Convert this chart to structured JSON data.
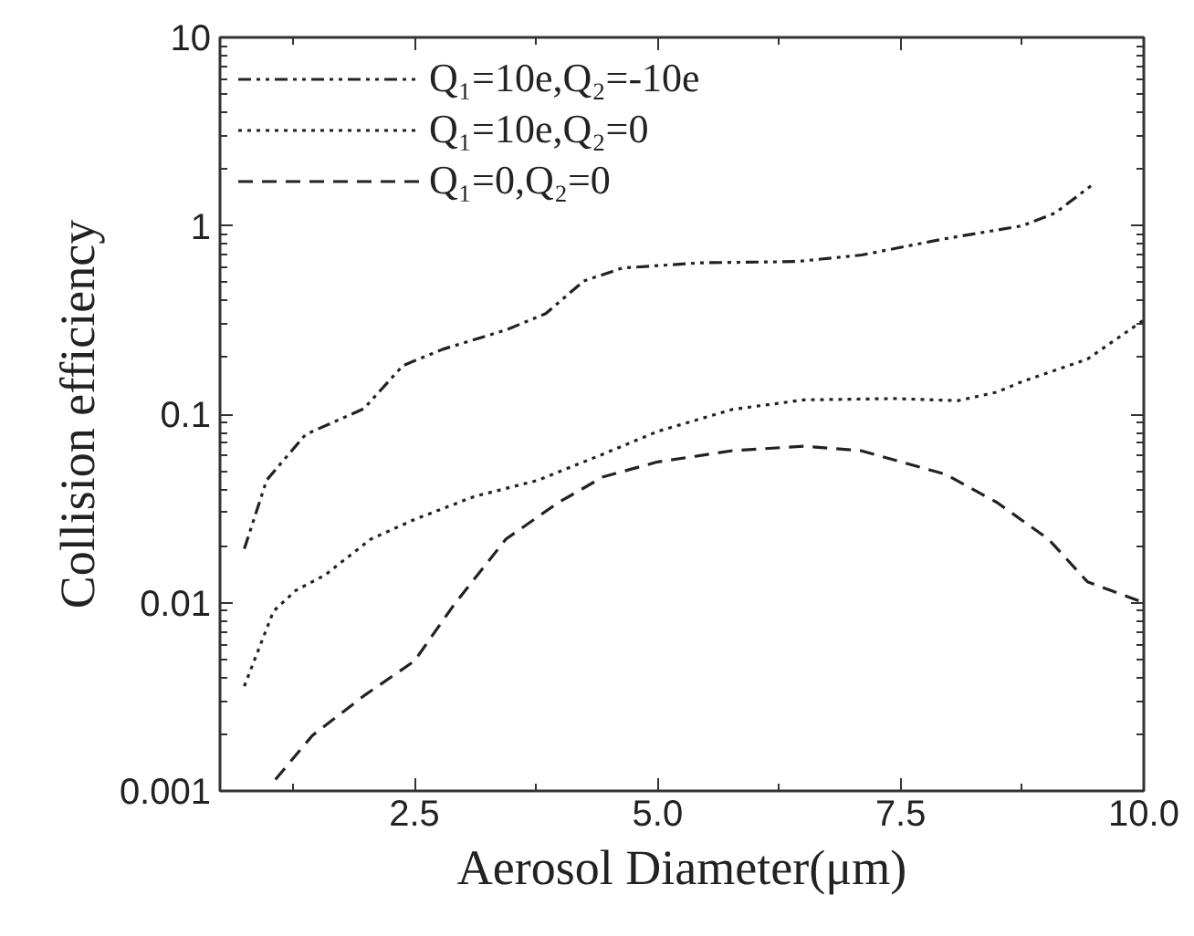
{
  "chart_data": {
    "type": "line",
    "xlabel": "Aerosol Diameter(μm)",
    "ylabel": "Collision efficiency",
    "log": "y",
    "xlim": [
      0.5,
      10
    ],
    "xticks": [
      2.5,
      {
        "value": 5,
        "label": "5.0"
      },
      7.5,
      {
        "value": 10,
        "label": "10.0"
      }
    ],
    "ylim": [
      0.001,
      10
    ],
    "yticks": [
      0.001,
      0.01,
      0.1,
      1,
      10
    ],
    "grid": false,
    "legend": "top left",
    "marker": "none",
    "series": [
      {
        "name": "Q₁=10e,Q₂=-10e",
        "color": "#222222",
        "line_style": "dashdotdot",
        "x": [
          0.75,
          0.98,
          1.38,
          1.98,
          2.38,
          2.79,
          3.45,
          3.85,
          4.24,
          4.64,
          5.44,
          6.43,
          7.1,
          7.95,
          8.75,
          9.09,
          9.49
        ],
        "values": [
          0.0193,
          0.0447,
          0.078,
          0.107,
          0.181,
          0.221,
          0.281,
          0.342,
          0.509,
          0.597,
          0.636,
          0.646,
          0.7,
          0.853,
          1.0,
          1.17,
          1.68
        ]
      },
      {
        "name": "Q₁=10e,Q₂=0",
        "color": "#222222",
        "line_style": "dotted",
        "x": [
          0.75,
          1.05,
          1.28,
          1.58,
          2.05,
          2.5,
          3.11,
          3.77,
          4.44,
          5.0,
          5.77,
          6.5,
          7.43,
          8.09,
          8.49,
          8.75,
          9.42,
          10.0
        ],
        "values": [
          0.0036,
          0.009,
          0.0116,
          0.014,
          0.0217,
          0.0276,
          0.0365,
          0.0446,
          0.0614,
          0.081,
          0.106,
          0.119,
          0.121,
          0.118,
          0.131,
          0.149,
          0.196,
          0.316
        ]
      },
      {
        "name": "Q₁=0,Q₂=0",
        "color": "#222222",
        "line_style": "dashed",
        "x": [
          1.07,
          1.45,
          1.98,
          2.5,
          2.91,
          3.44,
          3.97,
          4.44,
          5.0,
          5.77,
          6.5,
          7.09,
          7.96,
          8.49,
          9.02,
          9.42,
          9.95
        ],
        "values": [
          0.00115,
          0.00197,
          0.0032,
          0.0049,
          0.0098,
          0.0217,
          0.0337,
          0.0465,
          0.0558,
          0.064,
          0.0676,
          0.064,
          0.048,
          0.034,
          0.0217,
          0.0129,
          0.0102
        ]
      }
    ]
  }
}
